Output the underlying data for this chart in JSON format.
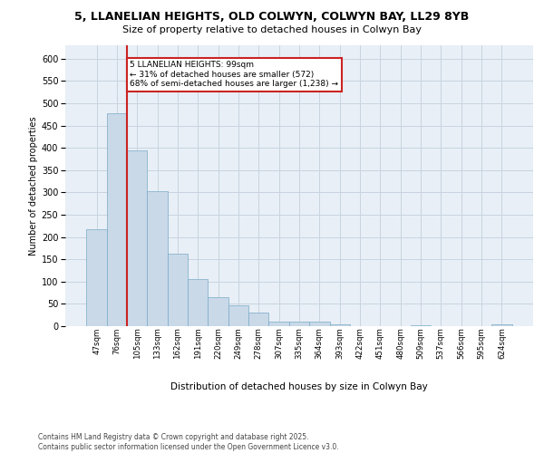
{
  "title_line1": "5, LLANELIAN HEIGHTS, OLD COLWYN, COLWYN BAY, LL29 8YB",
  "title_line2": "Size of property relative to detached houses in Colwyn Bay",
  "xlabel": "Distribution of detached houses by size in Colwyn Bay",
  "ylabel": "Number of detached properties",
  "categories": [
    "47sqm",
    "76sqm",
    "105sqm",
    "133sqm",
    "162sqm",
    "191sqm",
    "220sqm",
    "249sqm",
    "278sqm",
    "307sqm",
    "335sqm",
    "364sqm",
    "393sqm",
    "422sqm",
    "451sqm",
    "480sqm",
    "509sqm",
    "537sqm",
    "566sqm",
    "595sqm",
    "624sqm"
  ],
  "values": [
    218,
    478,
    395,
    302,
    163,
    105,
    65,
    47,
    30,
    10,
    10,
    10,
    5,
    0,
    0,
    0,
    3,
    0,
    0,
    0,
    4
  ],
  "bar_color": "#c9d9e8",
  "bar_edge_color": "#7aaac8",
  "grid_color": "#c8d4e0",
  "background_color": "#e8eff6",
  "vline_x_index": 2,
  "vline_color": "#cc2222",
  "annotation_text": "5 LLANELIAN HEIGHTS: 99sqm\n← 31% of detached houses are smaller (572)\n68% of semi-detached houses are larger (1,238) →",
  "annotation_box_color": "#ffffff",
  "annotation_box_edge": "#cc2222",
  "footer": "Contains HM Land Registry data © Crown copyright and database right 2025.\nContains public sector information licensed under the Open Government Licence v3.0.",
  "ylim_max": 630,
  "yticks": [
    0,
    50,
    100,
    150,
    200,
    250,
    300,
    350,
    400,
    450,
    500,
    550,
    600
  ]
}
